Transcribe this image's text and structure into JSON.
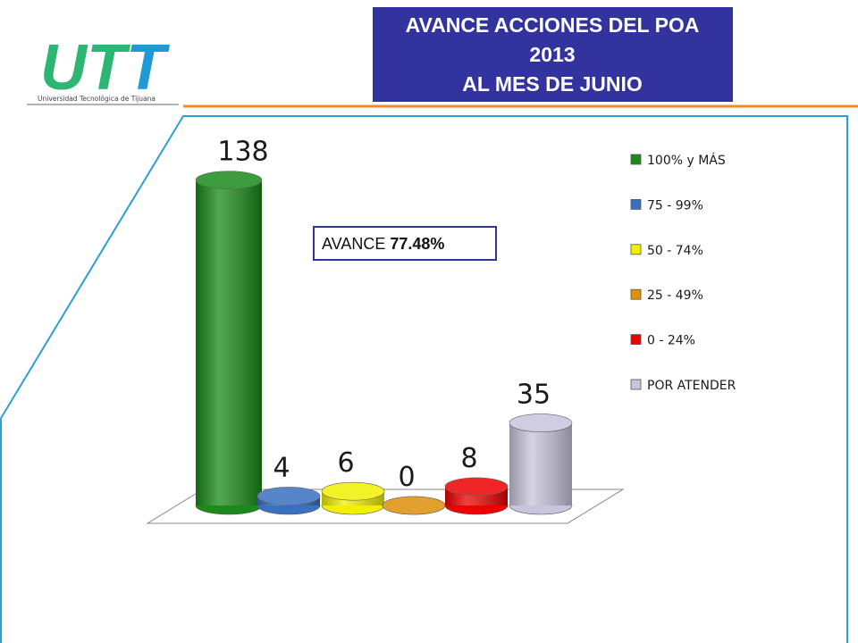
{
  "logo": {
    "letters": [
      "U",
      "T",
      "T"
    ],
    "subtitle": "Universidad Tecnológica de Tijuana"
  },
  "chart_data": {
    "type": "bar3d",
    "title": [
      "AVANCE ACCIONES DEL POA",
      "2013",
      "AL MES DE JUNIO"
    ],
    "annotation": {
      "prefix": "AVANCE",
      "value": "77.48%"
    },
    "categories": [
      "100% y MÁS",
      "75 - 99%",
      "50 - 74%",
      "25 - 49%",
      "0 - 24%",
      "POR ATENDER"
    ],
    "values": [
      138,
      4,
      6,
      0,
      8,
      35
    ],
    "colors": [
      "#1a8a1a",
      "#3a70c0",
      "#f0f000",
      "#e0900a",
      "#ee0000",
      "#c8c4dc"
    ],
    "legend": "right"
  }
}
